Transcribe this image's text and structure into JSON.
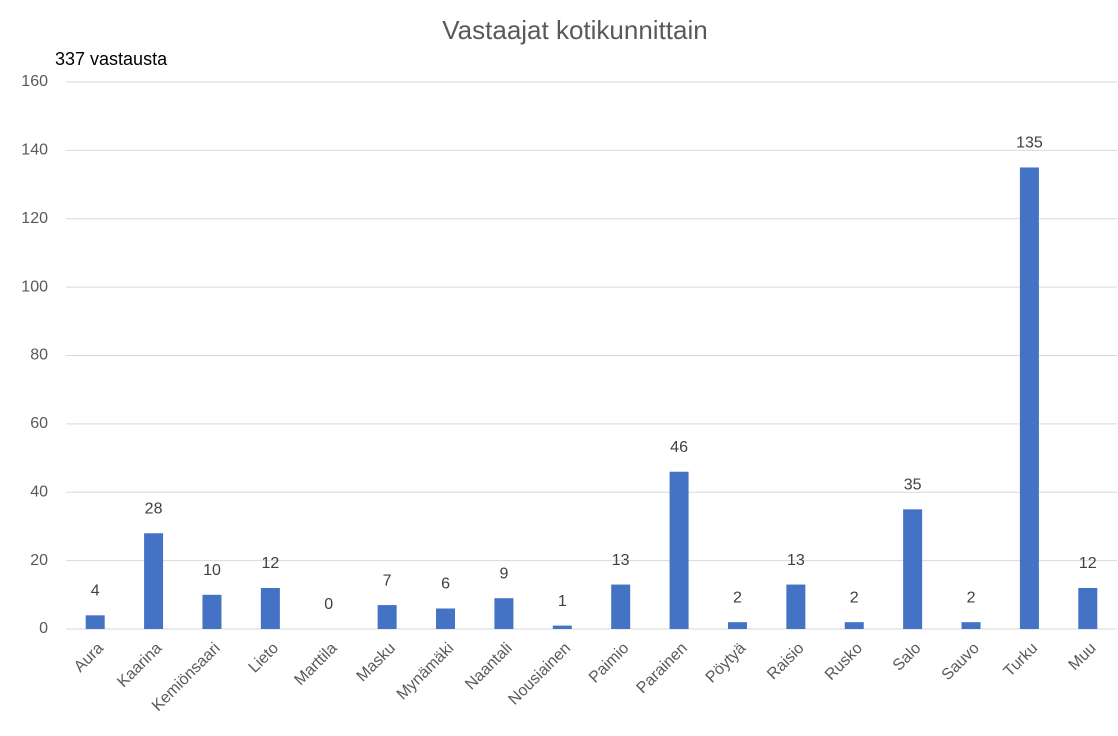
{
  "chart_data": {
    "type": "bar",
    "title": "Vastaajat kotikunnittain",
    "subtitle": "337 vastausta",
    "categories": [
      "Aura",
      "Kaarina",
      "Kemiönsaari",
      "Lieto",
      "Marttila",
      "Masku",
      "Mynämäki",
      "Naantali",
      "Nousiainen",
      "Paimio",
      "Parainen",
      "Pöytyä",
      "Raisio",
      "Rusko",
      "Salo",
      "Sauvo",
      "Turku",
      "Muu"
    ],
    "values": [
      4,
      28,
      10,
      12,
      0,
      7,
      6,
      9,
      1,
      13,
      46,
      2,
      13,
      2,
      35,
      2,
      135,
      12
    ],
    "color": "#4472c4",
    "ylim": [
      0,
      160
    ],
    "yticks": [
      0,
      20,
      40,
      60,
      80,
      100,
      120,
      140,
      160
    ],
    "grid": true
  }
}
